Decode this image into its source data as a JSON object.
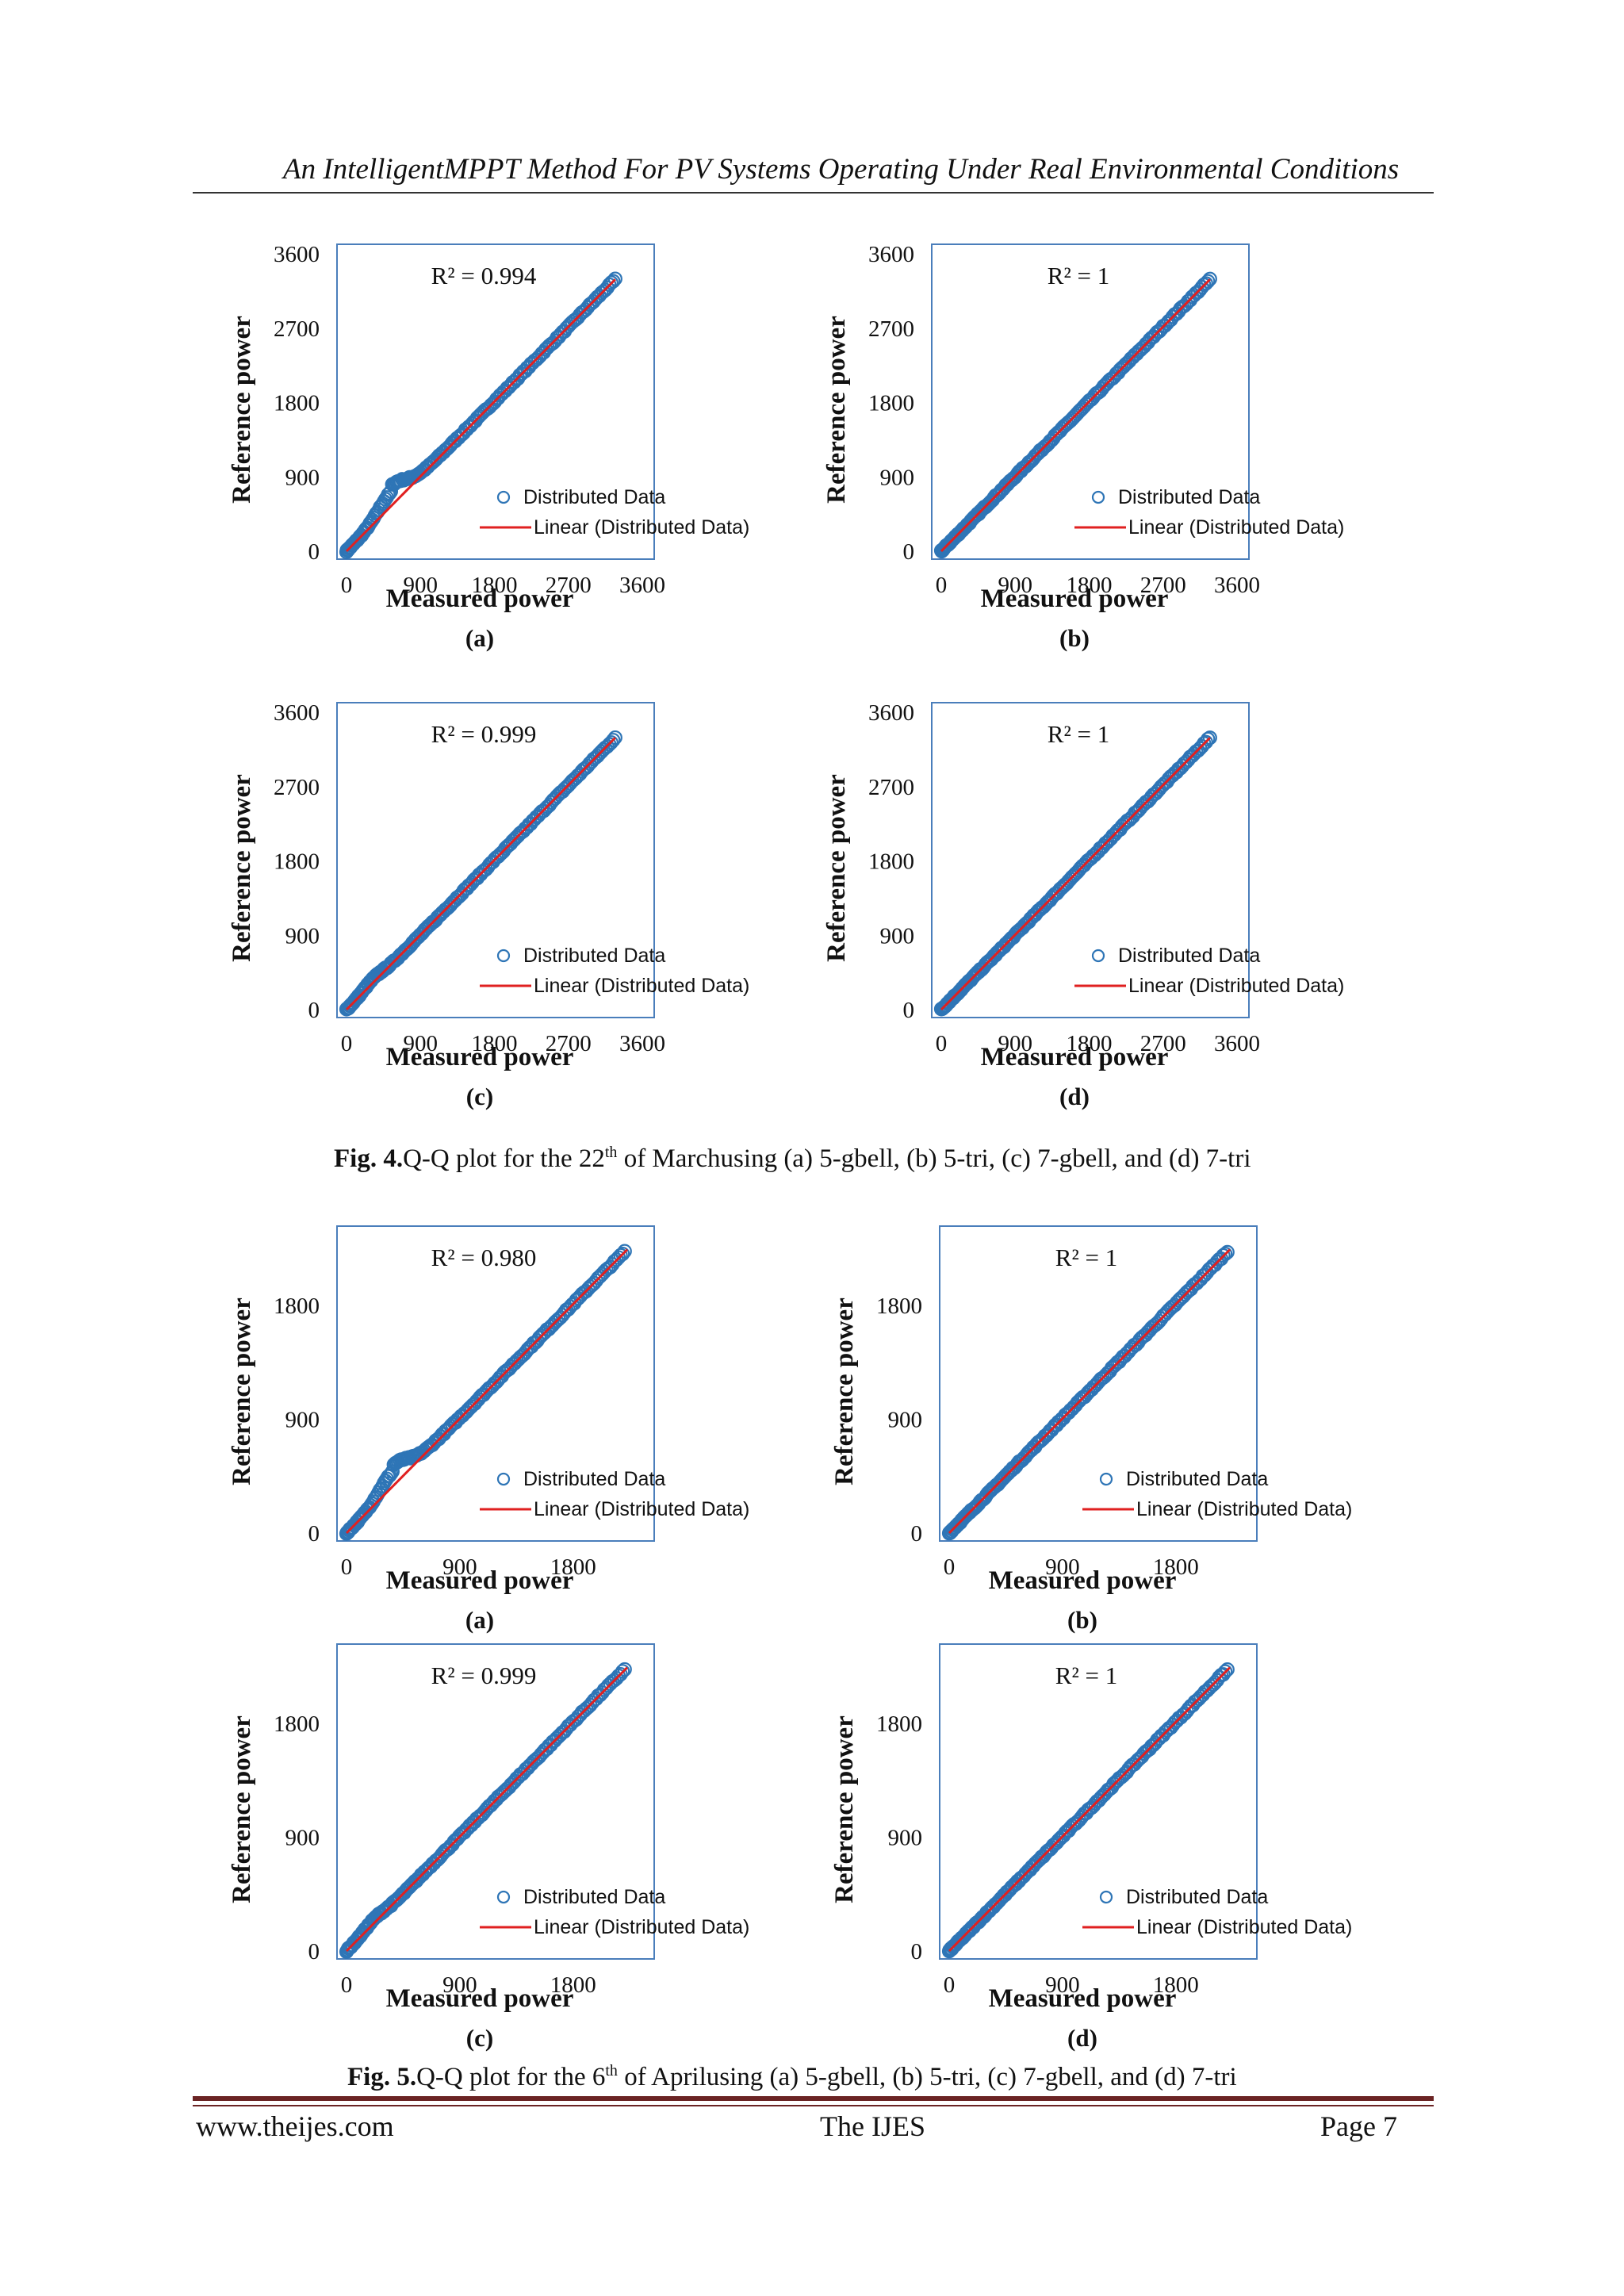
{
  "header": {
    "running_title": "An IntelligentMPPT Method For PV Systems Operating Under Real Environmental Conditions"
  },
  "colors": {
    "marker": "#2e75b6",
    "fit_line": "#e02020",
    "plot_border": "#4a7ebb"
  },
  "common": {
    "xlabel": "Measured power",
    "ylabel": "Reference power",
    "legend_markers": "Distributed Data",
    "legend_line": "Linear (Distributed Data)"
  },
  "figure4": {
    "caption_bold": "Fig. 4.",
    "caption_pre": "Q-Q plot for the 22",
    "caption_sup": "th",
    "caption_post": " of Marchusing (a) 5-gbell, (b) 5-tri, (c) 7-gbell, and (d) 7-tri"
  },
  "figure5": {
    "caption_bold": "Fig. 5.",
    "caption_pre": "Q-Q plot for the 6",
    "caption_sup": "th",
    "caption_post": " of Aprilusing (a) 5-gbell, (b) 5-tri, (c) 7-gbell, and (d) 7-tri"
  },
  "footer": {
    "website": "www.theijes.com",
    "journal": "The IJES",
    "page": "Page 7"
  },
  "chart_data": [
    {
      "id": "fig4a",
      "type": "scatter",
      "panel_label": "(a)",
      "r2_text": "R² = 0.994",
      "xlabel": "Measured power",
      "ylabel": "Reference power",
      "xlim": [
        0,
        3600
      ],
      "ylim": [
        0,
        3600
      ],
      "xticks": [
        0,
        900,
        1800,
        2700,
        3600
      ],
      "yticks": [
        0,
        900,
        1800,
        2700,
        3600
      ],
      "x_max": 3270,
      "anomaly": "bump",
      "series": [
        {
          "name": "Distributed Data",
          "kind": "markers"
        },
        {
          "name": "Linear (Distributed Data)",
          "kind": "line",
          "points": [
            [
              0,
              0
            ],
            [
              3270,
              3290
            ]
          ]
        }
      ]
    },
    {
      "id": "fig4b",
      "type": "scatter",
      "panel_label": "(b)",
      "r2_text": "R² = 1",
      "xlabel": "Measured power",
      "ylabel": "Reference power",
      "xlim": [
        0,
        3600
      ],
      "ylim": [
        0,
        3600
      ],
      "xticks": [
        0,
        900,
        1800,
        2700,
        3600
      ],
      "yticks": [
        0,
        900,
        1800,
        2700,
        3600
      ],
      "x_max": 3270,
      "anomaly": "none",
      "series": [
        {
          "name": "Distributed Data",
          "kind": "markers"
        },
        {
          "name": "Linear (Distributed Data)",
          "kind": "line",
          "points": [
            [
              0,
              0
            ],
            [
              3270,
              3290
            ]
          ]
        }
      ]
    },
    {
      "id": "fig4c",
      "type": "scatter",
      "panel_label": "(c)",
      "r2_text": "R² = 0.999",
      "xlabel": "Measured power",
      "ylabel": "Reference power",
      "xlim": [
        0,
        3600
      ],
      "ylim": [
        0,
        3600
      ],
      "xticks": [
        0,
        900,
        1800,
        2700,
        3600
      ],
      "yticks": [
        0,
        900,
        1800,
        2700,
        3600
      ],
      "x_max": 3270,
      "anomaly": "small",
      "series": [
        {
          "name": "Distributed Data",
          "kind": "markers"
        },
        {
          "name": "Linear (Distributed Data)",
          "kind": "line",
          "points": [
            [
              0,
              0
            ],
            [
              3270,
              3290
            ]
          ]
        }
      ]
    },
    {
      "id": "fig4d",
      "type": "scatter",
      "panel_label": "(d)",
      "r2_text": "R² = 1",
      "xlabel": "Measured power",
      "ylabel": "Reference power",
      "xlim": [
        0,
        3600
      ],
      "ylim": [
        0,
        3600
      ],
      "xticks": [
        0,
        900,
        1800,
        2700,
        3600
      ],
      "yticks": [
        0,
        900,
        1800,
        2700,
        3600
      ],
      "x_max": 3270,
      "anomaly": "none",
      "series": [
        {
          "name": "Distributed Data",
          "kind": "markers"
        },
        {
          "name": "Linear (Distributed Data)",
          "kind": "line",
          "points": [
            [
              0,
              0
            ],
            [
              3270,
              3290
            ]
          ]
        }
      ]
    },
    {
      "id": "fig5a",
      "type": "scatter",
      "panel_label": "(a)",
      "r2_text": "R² = 0.980",
      "xlabel": "Measured power",
      "ylabel": "Reference power",
      "xlim": [
        0,
        2350
      ],
      "ylim": [
        0,
        2350
      ],
      "xticks": [
        0,
        900,
        1800
      ],
      "yticks": [
        0,
        900,
        1800
      ],
      "x_max": 2210,
      "anomaly": "bump",
      "series": [
        {
          "name": "Distributed Data",
          "kind": "markers"
        },
        {
          "name": "Linear (Distributed Data)",
          "kind": "line",
          "points": [
            [
              0,
              0
            ],
            [
              2230,
              2240
            ]
          ]
        }
      ]
    },
    {
      "id": "fig5b",
      "type": "scatter",
      "panel_label": "(b)",
      "r2_text": "R² = 1",
      "xlabel": "Measured power",
      "ylabel": "Reference power",
      "xlim": [
        0,
        2350
      ],
      "ylim": [
        0,
        2350
      ],
      "xticks": [
        0,
        900,
        1800
      ],
      "yticks": [
        0,
        900,
        1800
      ],
      "x_max": 2210,
      "anomaly": "none",
      "series": [
        {
          "name": "Distributed Data",
          "kind": "markers"
        },
        {
          "name": "Linear (Distributed Data)",
          "kind": "line",
          "points": [
            [
              0,
              0
            ],
            [
              2230,
              2240
            ]
          ]
        }
      ]
    },
    {
      "id": "fig5c",
      "type": "scatter",
      "panel_label": "(c)",
      "r2_text": "R² = 0.999",
      "xlabel": "Measured power",
      "ylabel": "Reference power",
      "xlim": [
        0,
        2350
      ],
      "ylim": [
        0,
        2350
      ],
      "xticks": [
        0,
        900,
        1800
      ],
      "yticks": [
        0,
        900,
        1800
      ],
      "x_max": 2210,
      "anomaly": "small",
      "series": [
        {
          "name": "Distributed Data",
          "kind": "markers"
        },
        {
          "name": "Linear (Distributed Data)",
          "kind": "line",
          "points": [
            [
              0,
              0
            ],
            [
              2230,
              2240
            ]
          ]
        }
      ]
    },
    {
      "id": "fig5d",
      "type": "scatter",
      "panel_label": "(d)",
      "r2_text": "R² = 1",
      "xlabel": "Measured power",
      "ylabel": "Reference power",
      "xlim": [
        0,
        2350
      ],
      "ylim": [
        0,
        2350
      ],
      "xticks": [
        0,
        900,
        1800
      ],
      "yticks": [
        0,
        900,
        1800
      ],
      "x_max": 2210,
      "anomaly": "none",
      "series": [
        {
          "name": "Distributed Data",
          "kind": "markers"
        },
        {
          "name": "Linear (Distributed Data)",
          "kind": "line",
          "points": [
            [
              0,
              0
            ],
            [
              2230,
              2240
            ]
          ]
        }
      ]
    }
  ]
}
